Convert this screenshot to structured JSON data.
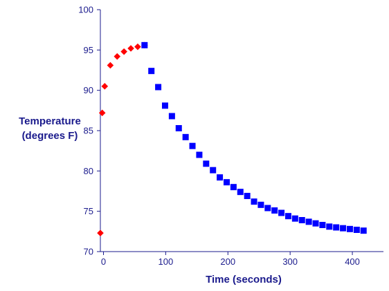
{
  "chart_data": {
    "type": "scatter",
    "xlabel": "Time (seconds)",
    "ylabel_lines": [
      "Temperature",
      "(degrees F)"
    ],
    "xlim": [
      -5,
      450
    ],
    "ylim": [
      70,
      100
    ],
    "xticks": [
      0,
      100,
      200,
      300,
      400
    ],
    "yticks": [
      70,
      75,
      80,
      85,
      90,
      95,
      100
    ],
    "grid": false,
    "legend": "none",
    "series": [
      {
        "marker": "diamond",
        "color": "#ff0000",
        "x": [
          -5,
          -2,
          2,
          11,
          22,
          33,
          44,
          55,
          66
        ],
        "y": [
          72.3,
          87.2,
          90.5,
          93.1,
          94.2,
          94.8,
          95.2,
          95.4,
          95.6
        ]
      },
      {
        "marker": "square",
        "color": "#0000ff",
        "x": [
          66,
          77,
          88,
          99,
          110,
          121,
          132,
          143,
          154,
          165,
          176,
          187,
          198,
          209,
          220,
          231,
          242,
          253,
          264,
          275,
          286,
          297,
          308,
          319,
          330,
          341,
          352,
          363,
          374,
          385,
          396,
          407,
          418
        ],
        "y": [
          95.6,
          92.4,
          90.4,
          88.1,
          86.8,
          85.3,
          84.2,
          83.1,
          82.0,
          80.9,
          80.1,
          79.2,
          78.6,
          78.0,
          77.4,
          76.9,
          76.2,
          75.8,
          75.4,
          75.1,
          74.8,
          74.4,
          74.1,
          73.9,
          73.7,
          73.5,
          73.3,
          73.1,
          73.0,
          72.9,
          72.8,
          72.7,
          72.6
        ]
      }
    ]
  }
}
